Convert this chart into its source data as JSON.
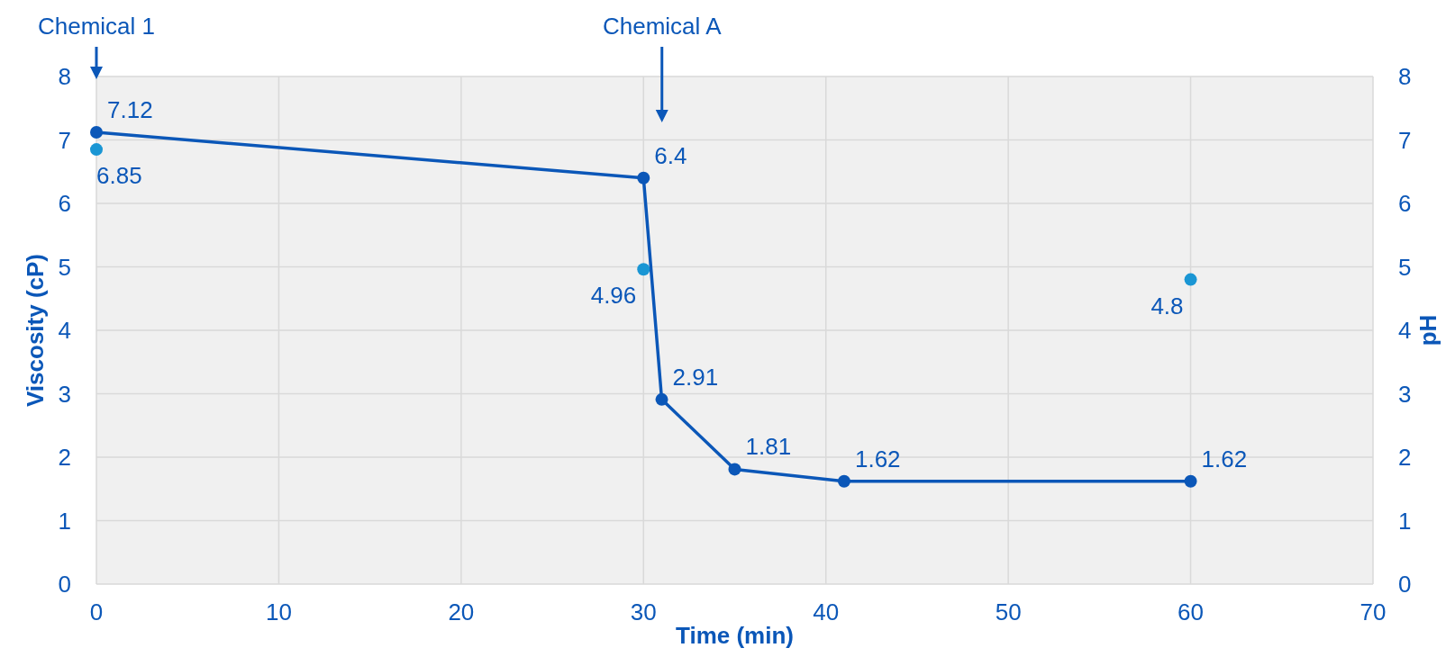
{
  "chart_data": {
    "type": "line",
    "xlabel": "Time (min)",
    "ylabel": "Viscosity (cP)",
    "y2label": "pH",
    "xlim": [
      0,
      70
    ],
    "xticks": [
      0,
      10,
      20,
      30,
      40,
      50,
      60,
      70
    ],
    "ylim": [
      0,
      8
    ],
    "yticks": [
      0,
      1,
      2,
      3,
      4,
      5,
      6,
      7,
      8
    ],
    "y2lim": [
      0,
      8
    ],
    "y2ticks": [
      0,
      1,
      2,
      3,
      4,
      5,
      6,
      7,
      8
    ],
    "grid": true,
    "data_labels": true,
    "marker": "circle",
    "series": [
      {
        "color": "#0b57b8",
        "x": [
          0,
          30,
          31,
          35,
          41,
          60
        ],
        "values": [
          7.12,
          6.4,
          2.91,
          1.81,
          1.62,
          1.62
        ]
      },
      {
        "type": "scatter",
        "axis": "y2",
        "color": "#1a96d4",
        "x": [
          0,
          30,
          60
        ],
        "values": [
          6.85,
          4.96,
          4.8
        ]
      }
    ],
    "annotations": [
      "Chemical 1",
      "Chemical A"
    ]
  }
}
